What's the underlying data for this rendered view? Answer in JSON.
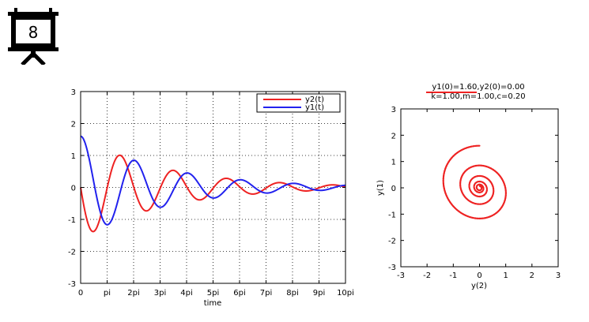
{
  "slide_badge": {
    "number": "8",
    "icon": "presentation-board-icon"
  },
  "chart_data": [
    {
      "type": "line",
      "xlabel": "time",
      "ylabel": "",
      "xlim": [
        0,
        31.4159
      ],
      "ylim": [
        -3,
        3
      ],
      "x_ticks": [
        {
          "v": 0,
          "label": "0"
        },
        {
          "v": 3.1416,
          "label": "pi"
        },
        {
          "v": 6.2832,
          "label": "2pi"
        },
        {
          "v": 9.4248,
          "label": "3pi"
        },
        {
          "v": 12.5664,
          "label": "4pi"
        },
        {
          "v": 15.708,
          "label": "5pi"
        },
        {
          "v": 18.8496,
          "label": "6pi"
        },
        {
          "v": 21.9911,
          "label": "7pi"
        },
        {
          "v": 25.1327,
          "label": "8pi"
        },
        {
          "v": 28.2743,
          "label": "9pi"
        },
        {
          "v": 31.4159,
          "label": "10pi"
        }
      ],
      "y_ticks": [
        "-3",
        "-2",
        "-1",
        "0",
        "1",
        "2",
        "3"
      ],
      "grid": true,
      "legend": "top-right",
      "model": {
        "k": 1.0,
        "m": 1.0,
        "c": 0.2,
        "y1_0": 1.6,
        "y2_0": 0.0
      },
      "series": [
        {
          "name": "y2(t)",
          "color": "#ee2222",
          "component": "y2"
        },
        {
          "name": "y1(t)",
          "color": "#2222ee",
          "component": "y1"
        }
      ]
    },
    {
      "type": "line",
      "title_lines": [
        "y1(0)=1.60,y2(0)=0.00",
        "k=1.00,m=1.00,c=0.20"
      ],
      "xlabel": "y(2)",
      "ylabel": "y(1)",
      "xlim": [
        -3,
        3
      ],
      "ylim": [
        -3,
        3
      ],
      "x_ticks": [
        "-3",
        "-2",
        "-1",
        "0",
        "1",
        "2",
        "3"
      ],
      "y_ticks": [
        "-3",
        "-2",
        "-1",
        "0",
        "1",
        "2",
        "3"
      ],
      "grid": false,
      "series": [
        {
          "name": "",
          "color": "#ee2222",
          "x_component": "y2",
          "y_component": "y1",
          "marker": "dot"
        }
      ]
    }
  ],
  "colors": {
    "y1": "#2222ee",
    "y2": "#ee2222",
    "axis": "#000000",
    "grid": "#000000"
  }
}
